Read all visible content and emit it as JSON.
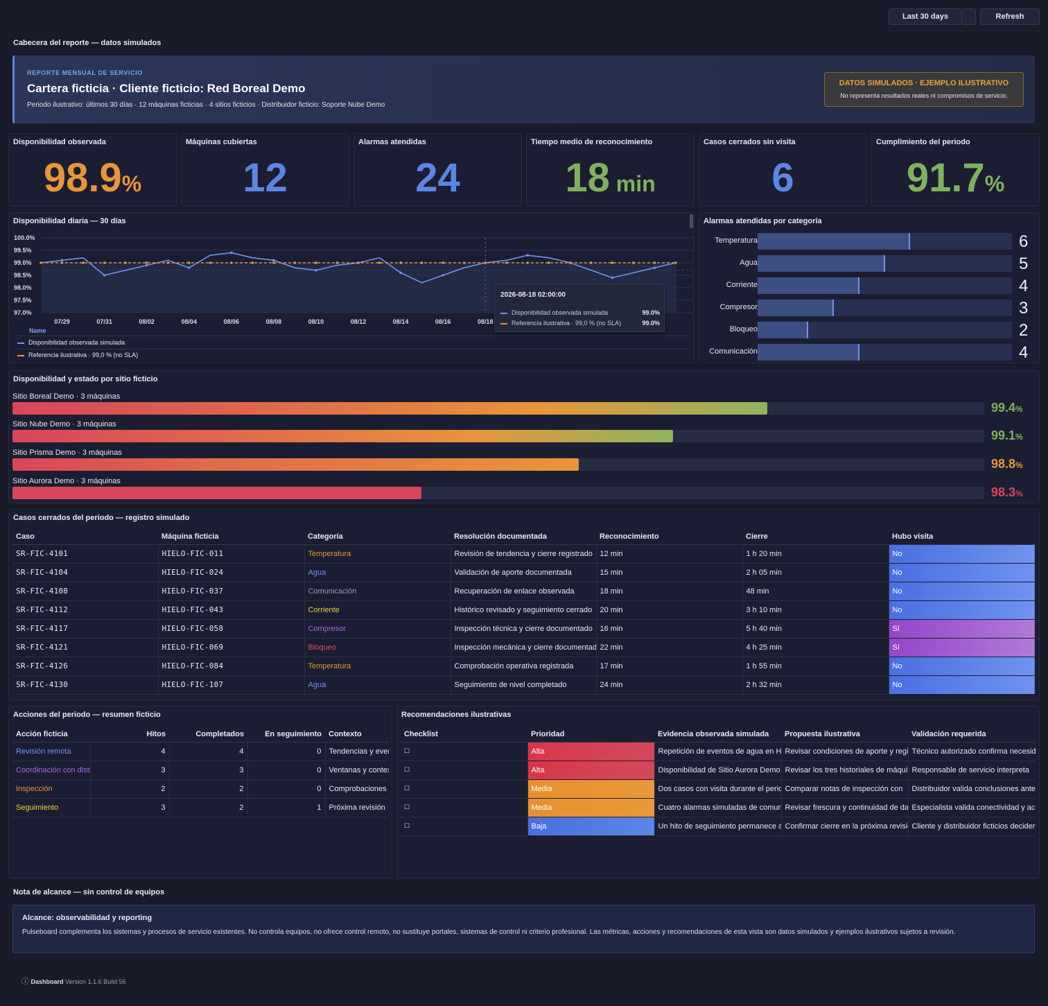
{
  "toolbar": {
    "range_label": "Last 30 days",
    "refresh_label": "Refresh"
  },
  "header_section": {
    "label": "Cabecera del reporte — datos simulados"
  },
  "banner": {
    "eyebrow": "REPORTE MENSUAL DE SERVICIO",
    "title": "Cartera ficticia · Cliente ficticio: Red Boreal Demo",
    "subtitle": "Periodo ilustrativo: últimos 30 días · 12 máquinas ficticias · 4 sitios ficticios · Distribuidor ficticio: Soporte Nube Demo",
    "badge_title": "DATOS SIMULADOS · EJEMPLO ILUSTRATIVO",
    "badge_text": "No representa resultados reales ni compromisos de servicio."
  },
  "kpis": [
    {
      "title": "Disponibilidad observada",
      "value": "98.9",
      "unit": "%",
      "color": "#e8953a"
    },
    {
      "title": "Máquinas cubiertas",
      "value": "12",
      "unit": "",
      "color": "#5b86e5"
    },
    {
      "title": "Alarmas atendidas",
      "value": "24",
      "unit": "",
      "color": "#5b86e5"
    },
    {
      "title": "Tiempo medio de reconocimiento",
      "value": "18",
      "unit": " min",
      "color": "#7fb25c"
    },
    {
      "title": "Casos cerrados sin visita",
      "value": "6",
      "unit": "",
      "color": "#5b86e5"
    },
    {
      "title": "Cumplimiento del periodo",
      "value": "91.7",
      "unit": "%",
      "color": "#7fb25c"
    }
  ],
  "daily_chart": {
    "title": "Disponibilidad diaria — 30 días",
    "y_ticks": [
      "100.0%",
      "99.5%",
      "99.0%",
      "98.5%",
      "98.0%",
      "97.5%",
      "97.0%"
    ],
    "x_ticks": [
      "07/29",
      "07/31",
      "08/02",
      "08/04",
      "08/06",
      "08/08",
      "08/10",
      "08/12",
      "08/14",
      "08/16",
      "08/18"
    ],
    "legend_header": "Name",
    "tooltip": {
      "time": "2026-08-18 02:00:00",
      "rows": [
        {
          "name": "Disponibilidad observada simulada",
          "value": "99.0%"
        },
        {
          "name": "Referencia ilustrativa · 99,0 % (no SLA)",
          "value": "99.0%"
        }
      ]
    }
  },
  "chart_data": {
    "type": "line",
    "ylim": [
      97.0,
      100.0
    ],
    "x_range": [
      "07/28",
      "08/27"
    ],
    "series": [
      {
        "name": "Disponibilidad observada simulada",
        "color": "#6f93ee",
        "style": "solid",
        "values": [
          99.0,
          99.1,
          99.2,
          98.5,
          98.7,
          98.9,
          99.1,
          98.8,
          99.3,
          99.4,
          99.2,
          99.1,
          98.8,
          98.7,
          98.9,
          99.0,
          99.2,
          98.6,
          98.2,
          98.5,
          98.8,
          99.0,
          99.1,
          99.3,
          99.2,
          99.0,
          98.7,
          98.4,
          98.6,
          98.8,
          99.0
        ]
      },
      {
        "name": "Referencia ilustrativa · 99,0 % (no SLA)",
        "color": "#e8953a",
        "style": "dashed",
        "values": [
          99.0,
          99.0,
          99.0,
          99.0,
          99.0,
          99.0,
          99.0,
          99.0,
          99.0,
          99.0,
          99.0,
          99.0,
          99.0,
          99.0,
          99.0,
          99.0,
          99.0,
          99.0,
          99.0,
          99.0,
          99.0,
          99.0,
          99.0,
          99.0,
          99.0,
          99.0,
          99.0,
          99.0,
          99.0,
          99.0,
          99.0
        ]
      }
    ]
  },
  "categories": {
    "title": "Alarmas atendidas por categoría",
    "max": 10,
    "items": [
      {
        "label": "Temperatura",
        "value": 6,
        "display": "6"
      },
      {
        "label": "Agua",
        "value": 5,
        "display": "5"
      },
      {
        "label": "Corriente",
        "value": 4,
        "display": "4"
      },
      {
        "label": "Compresor",
        "value": 3,
        "display": "3"
      },
      {
        "label": "Bloqueo",
        "value": 2,
        "display": "2"
      },
      {
        "label": "Comunicación",
        "value": 4,
        "display": "4"
      }
    ]
  },
  "sites": {
    "title": "Disponibilidad y estado por sitio ficticio",
    "items": [
      {
        "label": "Sitio Boreal Demo · 3 máquinas",
        "fraction": 0.777,
        "value": "99.4",
        "unit": "%",
        "color": "#7fb25c",
        "gradient_end": "#8fb45e"
      },
      {
        "label": "Sitio Nube Demo · 3 máquinas",
        "fraction": 0.68,
        "value": "99.1",
        "unit": "%",
        "color": "#7fb25c",
        "gradient_end": "#8fb45e"
      },
      {
        "label": "Sitio Prisma Demo · 3 máquinas",
        "fraction": 0.583,
        "value": "98.8",
        "unit": "%",
        "color": "#e8953a",
        "gradient_end": "#e8953a"
      },
      {
        "label": "Sitio Aurora Demo · 3 máquinas",
        "fraction": 0.421,
        "value": "98.3",
        "unit": "%",
        "color": "#d9455a",
        "gradient_end": "#d9455a"
      }
    ]
  },
  "cases": {
    "title": "Casos cerrados del periodo — registro simulado",
    "columns": [
      "Caso",
      "Máquina ficticia",
      "Categoría",
      "Resolución documentada",
      "Reconocimiento",
      "Cierre",
      "Hubo visita"
    ],
    "rows": [
      {
        "id": "SR-FIC-4101",
        "machine": "HIELO-FIC-011",
        "category": "Temperatura",
        "cat_color": "#e8953a",
        "resolution": "Revisión de tendencia y cierre registrado",
        "ack": "12 min",
        "close": "1 h 20 min",
        "visit": "No",
        "visit_color": "#5b86e5"
      },
      {
        "id": "SR-FIC-4104",
        "machine": "HIELO-FIC-024",
        "category": "Agua",
        "cat_color": "#6f93ee",
        "resolution": "Validación de aporte documentada",
        "ack": "15 min",
        "close": "2 h 05 min",
        "visit": "No",
        "visit_color": "#5b86e5"
      },
      {
        "id": "SR-FIC-4108",
        "machine": "HIELO-FIC-037",
        "category": "Comunicación",
        "cat_color": "#9a9ca8",
        "resolution": "Recuperación de enlace observada",
        "ack": "18 min",
        "close": "48 min",
        "visit": "No",
        "visit_color": "#5b86e5"
      },
      {
        "id": "SR-FIC-4112",
        "machine": "HIELO-FIC-043",
        "category": "Corriente",
        "cat_color": "#e8d33a",
        "resolution": "Histórico revisado y seguimiento cerrado",
        "ack": "20 min",
        "close": "3 h 10 min",
        "visit": "No",
        "visit_color": "#5b86e5"
      },
      {
        "id": "SR-FIC-4117",
        "machine": "HIELO-FIC-058",
        "category": "Compresor",
        "cat_color": "#a46bd6",
        "resolution": "Inspección técnica y cierre documentado",
        "ack": "16 min",
        "close": "5 h 40 min",
        "visit": "Sí",
        "visit_color": "#9b55cf"
      },
      {
        "id": "SR-FIC-4121",
        "machine": "HIELO-FIC-069",
        "category": "Bloqueo",
        "cat_color": "#e04a5c",
        "resolution": "Inspección mecánica y cierre documentado",
        "ack": "22 min",
        "close": "4 h 25 min",
        "visit": "Sí",
        "visit_color": "#9b55cf"
      },
      {
        "id": "SR-FIC-4126",
        "machine": "HIELO-FIC-084",
        "category": "Temperatura",
        "cat_color": "#e8953a",
        "resolution": "Comprobación operativa registrada",
        "ack": "17 min",
        "close": "1 h 55 min",
        "visit": "No",
        "visit_color": "#5b86e5"
      },
      {
        "id": "SR-FIC-4130",
        "machine": "HIELO-FIC-107",
        "category": "Agua",
        "cat_color": "#6f93ee",
        "resolution": "Seguimiento de nivel completado",
        "ack": "24 min",
        "close": "2 h 32 min",
        "visit": "No",
        "visit_color": "#5b86e5"
      }
    ]
  },
  "actions": {
    "title": "Acciones del periodo — resumen ficticio",
    "columns": [
      "Acción ficticia",
      "Hitos",
      "Completados",
      "En seguimiento",
      "Contexto"
    ],
    "rows": [
      {
        "name": "Revisión remota",
        "color": "#6f93ee",
        "hitos": "4",
        "done": "4",
        "follow": "0",
        "context": "Tendencias y eventos"
      },
      {
        "name": "Coordinación con distribuidor",
        "color": "#a46bd6",
        "hitos": "3",
        "done": "3",
        "follow": "0",
        "context": "Ventanas y contexto"
      },
      {
        "name": "Inspección",
        "color": "#e8953a",
        "hitos": "2",
        "done": "2",
        "follow": "0",
        "context": "Comprobaciones"
      },
      {
        "name": "Seguimiento",
        "color": "#e8d33a",
        "hitos": "3",
        "done": "2",
        "follow": "1",
        "context": "Próxima revisión"
      }
    ]
  },
  "recommendations": {
    "title": "Recomendaciones ilustrativas",
    "columns": [
      "Checklist",
      "Prioridad",
      "Evidencia observada simulada",
      "Propuesta ilustrativa",
      "Validación requerida"
    ],
    "rows": [
      {
        "check": "☐",
        "priority": "Alta",
        "p_color": "#d9364a",
        "p_color2": "#d4495c",
        "evidence": "Repetición de eventos de agua en Hielo",
        "proposal": "Revisar condiciones de aporte y registros",
        "validation": "Técnico autorizado confirma necesidad"
      },
      {
        "check": "☐",
        "priority": "Alta",
        "p_color": "#d9364a",
        "p_color2": "#d4495c",
        "evidence": "Disponibilidad de Sitio Aurora Demo",
        "proposal": "Revisar los tres historiales de máquina",
        "validation": "Responsable de servicio interpreta"
      },
      {
        "check": "☐",
        "priority": "Media",
        "p_color": "#e8902f",
        "p_color2": "#e8993a",
        "evidence": "Dos casos con visita durante el periodo",
        "proposal": "Comparar notas de inspección con",
        "validation": "Distribuidor valida conclusiones antes"
      },
      {
        "check": "☐",
        "priority": "Media",
        "p_color": "#e8902f",
        "p_color2": "#e8993a",
        "evidence": "Cuatro alarmas simuladas de comunicación",
        "proposal": "Revisar frescura y continuidad de datos",
        "validation": "Especialista valida conectividad y acceso"
      },
      {
        "check": "☐",
        "priority": "Baja",
        "p_color": "#4a6fe0",
        "p_color2": "#5b86e5",
        "evidence": "Un hito de seguimiento permanece abierto",
        "proposal": "Confirmar cierre en la próxima revisión",
        "validation": "Cliente y distribuidor ficticios deciden"
      }
    ]
  },
  "scope": {
    "section_label": "Nota de alcance — sin control de equipos",
    "title": "Alcance: observabilidad y reporting",
    "text": "Pulseboard complementa los sistemas y procesos de servicio existentes. No controla equipos, no ofrece control remoto, no sustituye portales, sistemas de control ni criterio profesional. Las métricas, acciones y recomendaciones de esta vista son datos simulados y ejemplos ilustrativos sujetos a revisión."
  },
  "footer": {
    "info_icon": "ⓘ",
    "app": "Dashboard",
    "version": "Version 1.1.6 Build 56"
  }
}
